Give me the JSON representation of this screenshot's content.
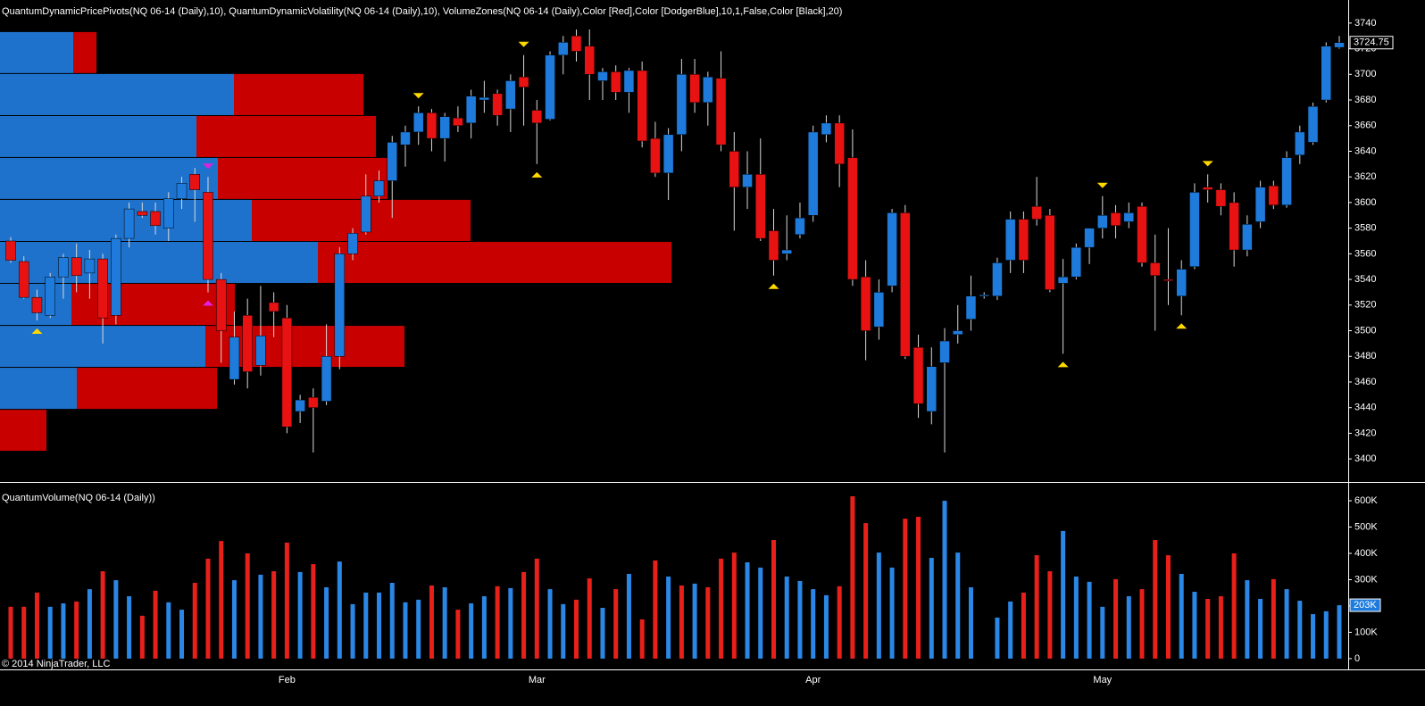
{
  "chart_data": {
    "type": "candlestick",
    "title": "QuantumDynamicPricePivots(NQ 06-14 (Daily),10), QuantumDynamicVolatility(NQ 06-14 (Daily),10), VolumeZones(NQ 06-14 (Daily),Color [Red],Color [DodgerBlue],10,1,False,Color [Black],20)",
    "copyright": "© 2014 NinjaTrader, LLC",
    "categories": [
      null,
      null,
      null,
      null,
      null,
      null,
      null,
      null,
      null,
      null,
      null,
      null,
      null,
      null,
      null,
      null,
      null,
      null,
      null,
      null,
      null,
      "Feb",
      null,
      null,
      null,
      null,
      null,
      null,
      null,
      null,
      null,
      null,
      null,
      null,
      null,
      null,
      null,
      null,
      null,
      null,
      "Mar",
      null,
      null,
      null,
      null,
      null,
      null,
      null,
      null,
      null,
      null,
      null,
      null,
      null,
      null,
      null,
      null,
      null,
      null,
      null,
      null,
      "Apr",
      null,
      null,
      null,
      null,
      null,
      null,
      null,
      null,
      null,
      null,
      null,
      null,
      null,
      null,
      null,
      null,
      null,
      null,
      null,
      null,
      null,
      "May",
      null,
      null,
      null,
      null,
      null,
      null,
      null,
      null,
      null,
      null,
      null,
      null,
      null,
      null,
      null,
      null,
      null,
      null
    ],
    "open": [
      3570,
      3554,
      3526,
      3512,
      3542,
      3557,
      3545,
      3556,
      3512,
      3572,
      3593,
      3593,
      3580,
      3603,
      3622,
      3608,
      3540,
      3462,
      3512,
      3473,
      3522,
      3510,
      3437,
      3448,
      3445,
      3480,
      3560,
      3577,
      3605,
      3617,
      3645,
      3655,
      3670,
      3650,
      3666,
      3662,
      3680,
      3685,
      3673,
      3698,
      3672,
      3665,
      3715,
      3730,
      3722,
      3695,
      3702,
      3686,
      3703,
      3650,
      3623,
      3653,
      3700,
      3678,
      3697,
      3640,
      3612,
      3622,
      3578,
      3560,
      3575,
      3590,
      3653,
      3662,
      3635,
      3542,
      3503,
      3535,
      3592,
      3487,
      3437,
      3475,
      3497,
      3509,
      3527,
      3527,
      3555,
      3587,
      3597,
      3590,
      3537,
      3542,
      3565,
      3580,
      3592,
      3585,
      3597,
      3553,
      3540,
      3527,
      3550,
      3612,
      3610,
      3600,
      3563,
      3585,
      3613,
      3598,
      3637,
      3647,
      3680,
      3721
    ],
    "high": [
      3573,
      3558,
      3532,
      3545,
      3560,
      3568,
      3563,
      3560,
      3575,
      3600,
      3600,
      3600,
      3608,
      3620,
      3627,
      3620,
      3545,
      3515,
      3525,
      3535,
      3530,
      3520,
      3450,
      3455,
      3505,
      3565,
      3580,
      3622,
      3625,
      3652,
      3660,
      3675,
      3673,
      3670,
      3675,
      3688,
      3695,
      3688,
      3700,
      3715,
      3680,
      3718,
      3730,
      3735,
      3735,
      3705,
      3707,
      3705,
      3710,
      3663,
      3658,
      3712,
      3712,
      3702,
      3718,
      3655,
      3640,
      3650,
      3595,
      3590,
      3600,
      3660,
      3668,
      3668,
      3657,
      3555,
      3540,
      3595,
      3598,
      3497,
      3487,
      3502,
      3520,
      3543,
      3530,
      3557,
      3593,
      3593,
      3620,
      3595,
      3556,
      3568,
      3580,
      3605,
      3598,
      3600,
      3600,
      3575,
      3580,
      3555,
      3615,
      3622,
      3615,
      3608,
      3590,
      3617,
      3617,
      3640,
      3660,
      3678,
      3725,
      3730
    ],
    "low": [
      3553,
      3525,
      3508,
      3510,
      3525,
      3530,
      3525,
      3490,
      3505,
      3565,
      3588,
      3575,
      3570,
      3595,
      3585,
      3530,
      3475,
      3458,
      3455,
      3465,
      3495,
      3420,
      3428,
      3405,
      3442,
      3470,
      3555,
      3575,
      3600,
      3588,
      3628,
      3645,
      3640,
      3632,
      3655,
      3650,
      3670,
      3660,
      3655,
      3660,
      3630,
      3664,
      3700,
      3710,
      3680,
      3680,
      3680,
      3670,
      3643,
      3620,
      3602,
      3640,
      3670,
      3660,
      3640,
      3578,
      3595,
      3570,
      3543,
      3555,
      3572,
      3585,
      3647,
      3612,
      3535,
      3477,
      3493,
      3530,
      3478,
      3432,
      3427,
      3405,
      3490,
      3500,
      3525,
      3524,
      3545,
      3545,
      3582,
      3530,
      3482,
      3540,
      3552,
      3572,
      3572,
      3580,
      3550,
      3500,
      3520,
      3512,
      3548,
      3600,
      3590,
      3550,
      3558,
      3580,
      3595,
      3596,
      3630,
      3645,
      3678,
      3720
    ],
    "close": [
      3555,
      3526,
      3514,
      3542,
      3557,
      3543,
      3556,
      3510,
      3572,
      3595,
      3590,
      3582,
      3603,
      3615,
      3610,
      3540,
      3500,
      3495,
      3468,
      3496,
      3515,
      3425,
      3446,
      3440,
      3480,
      3560,
      3576,
      3605,
      3617,
      3647,
      3655,
      3670,
      3650,
      3667,
      3660,
      3683,
      3682,
      3668,
      3695,
      3690,
      3662,
      3715,
      3725,
      3718,
      3700,
      3702,
      3686,
      3703,
      3648,
      3623,
      3653,
      3700,
      3678,
      3698,
      3645,
      3612,
      3622,
      3572,
      3555,
      3563,
      3588,
      3655,
      3662,
      3630,
      3540,
      3500,
      3530,
      3592,
      3480,
      3443,
      3472,
      3492,
      3500,
      3527,
      3528,
      3553,
      3587,
      3555,
      3587,
      3532,
      3542,
      3565,
      3580,
      3590,
      3582,
      3592,
      3553,
      3543,
      3540,
      3548,
      3608,
      3610,
      3597,
      3563,
      3583,
      3612,
      3598,
      3635,
      3655,
      3675,
      3722,
      3724.75
    ],
    "up_color": "#1e7bdc",
    "down_color": "#e81212",
    "wick_color": "#d8d8d8",
    "ylim": [
      3382,
      3758
    ],
    "yticks": [
      3400,
      3420,
      3440,
      3460,
      3480,
      3500,
      3520,
      3540,
      3560,
      3580,
      3600,
      3620,
      3640,
      3660,
      3680,
      3700,
      3720,
      3740
    ],
    "zones": [
      {
        "low": 3700.3,
        "high": 3733.0,
        "up": 82,
        "down": 26
      },
      {
        "low": 3667.5,
        "high": 3700.3,
        "up": 262,
        "down": 145
      },
      {
        "low": 3634.8,
        "high": 3667.5,
        "up": 220,
        "down": 201
      },
      {
        "low": 3602.1,
        "high": 3634.8,
        "up": 244,
        "down": 190
      },
      {
        "low": 3569.3,
        "high": 3602.1,
        "up": 282,
        "down": 245
      },
      {
        "low": 3536.6,
        "high": 3569.3,
        "up": 356,
        "down": 396
      },
      {
        "low": 3503.8,
        "high": 3536.6,
        "up": 80,
        "down": 183
      },
      {
        "low": 3471.1,
        "high": 3503.8,
        "up": 230,
        "down": 223
      },
      {
        "low": 3438.3,
        "high": 3471.1,
        "up": 86,
        "down": 157
      },
      {
        "low": 3405.6,
        "high": 3438.3,
        "up": 0,
        "down": 52
      }
    ],
    "zone_up_color": "#1f72cc",
    "zone_down_color": "#c80000",
    "pivots": [
      {
        "index": 2,
        "kind": "low",
        "color": "#ffd800"
      },
      {
        "index": 15,
        "kind": "high",
        "color": "#e020e0"
      },
      {
        "index": 15,
        "kind": "low",
        "color": "#e020e0"
      },
      {
        "index": 31,
        "kind": "high",
        "color": "#ffd800"
      },
      {
        "index": 39,
        "kind": "high",
        "color": "#ffd800"
      },
      {
        "index": 40,
        "kind": "low",
        "color": "#ffd800"
      },
      {
        "index": 58,
        "kind": "low",
        "color": "#ffd800"
      },
      {
        "index": 80,
        "kind": "low",
        "color": "#ffd800"
      },
      {
        "index": 83,
        "kind": "high",
        "color": "#ffd800"
      },
      {
        "index": 89,
        "kind": "low",
        "color": "#ffd800"
      },
      {
        "index": 91,
        "kind": "high",
        "color": "#ffd800"
      }
    ],
    "volume": {
      "title": "QuantumVolume(NQ 06-14 (Daily))",
      "values": [
        197,
        197,
        251,
        197,
        210,
        217,
        264,
        332,
        298,
        237,
        163,
        258,
        214,
        186,
        288,
        380,
        447,
        298,
        400,
        319,
        332,
        441,
        329,
        359,
        271,
        369,
        207,
        251,
        251,
        288,
        214,
        224,
        278,
        271,
        186,
        210,
        237,
        275,
        268,
        329,
        380,
        264,
        207,
        224,
        305,
        193,
        264,
        322,
        149,
        373,
        312,
        278,
        285,
        271,
        380,
        403,
        366,
        346,
        451,
        312,
        295,
        264,
        241,
        275,
        617,
        515,
        403,
        346,
        532,
        539,
        383,
        600,
        403,
        271,
        null,
        156,
        217,
        251,
        393,
        332,
        485,
        312,
        292,
        197,
        302,
        237,
        264,
        451,
        393,
        322,
        254,
        227,
        237,
        400,
        298,
        227,
        302,
        264,
        220,
        169,
        180,
        203
      ],
      "colors": [
        "#e8201a",
        "#e8201a",
        "#e8201a",
        "#2b87e6",
        "#2b87e6",
        "#e8201a",
        "#2b87e6",
        "#e8201a",
        "#2b87e6",
        "#2b87e6",
        "#e8201a",
        "#e8201a",
        "#2b87e6",
        "#2b87e6",
        "#e8201a",
        "#e8201a",
        "#e8201a",
        "#2b87e6",
        "#e8201a",
        "#2b87e6",
        "#e8201a",
        "#e8201a",
        "#2b87e6",
        "#e8201a",
        "#2b87e6",
        "#2b87e6",
        "#2b87e6",
        "#2b87e6",
        "#2b87e6",
        "#2b87e6",
        "#2b87e6",
        "#2b87e6",
        "#e8201a",
        "#2b87e6",
        "#e8201a",
        "#2b87e6",
        "#2b87e6",
        "#e8201a",
        "#2b87e6",
        "#e8201a",
        "#e8201a",
        "#2b87e6",
        "#2b87e6",
        "#e8201a",
        "#e8201a",
        "#2b87e6",
        "#e8201a",
        "#2b87e6",
        "#e8201a",
        "#e8201a",
        "#2b87e6",
        "#e8201a",
        "#2b87e6",
        "#e8201a",
        "#e8201a",
        "#e8201a",
        "#2b87e6",
        "#2b87e6",
        "#e8201a",
        "#2b87e6",
        "#2b87e6",
        "#2b87e6",
        "#2b87e6",
        "#e8201a",
        "#e8201a",
        "#e8201a",
        "#2b87e6",
        "#2b87e6",
        "#e8201a",
        "#e8201a",
        "#2b87e6",
        "#2b87e6",
        "#2b87e6",
        "#2b87e6",
        "#2b87e6",
        "#2b87e6",
        "#2b87e6",
        "#e8201a",
        "#e8201a",
        "#e8201a",
        "#2b87e6",
        "#2b87e6",
        "#2b87e6",
        "#2b87e6",
        "#e8201a",
        "#2b87e6",
        "#e8201a",
        "#e8201a",
        "#e8201a",
        "#2b87e6",
        "#2b87e6",
        "#e8201a",
        "#e8201a",
        "#e8201a",
        "#2b87e6",
        "#2b87e6",
        "#e8201a",
        "#2b87e6",
        "#2b87e6",
        "#2b87e6",
        "#2b87e6",
        "#2b87e6"
      ],
      "last_label": "203K",
      "ylim": [
        -41,
        668
      ],
      "yticks": [
        0,
        {
          "value": 100,
          "label": "100K"
        },
        {
          "value": 200,
          "label": "200K"
        },
        {
          "value": 300,
          "label": "300K"
        },
        {
          "value": 400,
          "label": "400K"
        },
        {
          "value": 500,
          "label": "500K"
        },
        {
          "value": 600,
          "label": "600K"
        }
      ]
    }
  }
}
